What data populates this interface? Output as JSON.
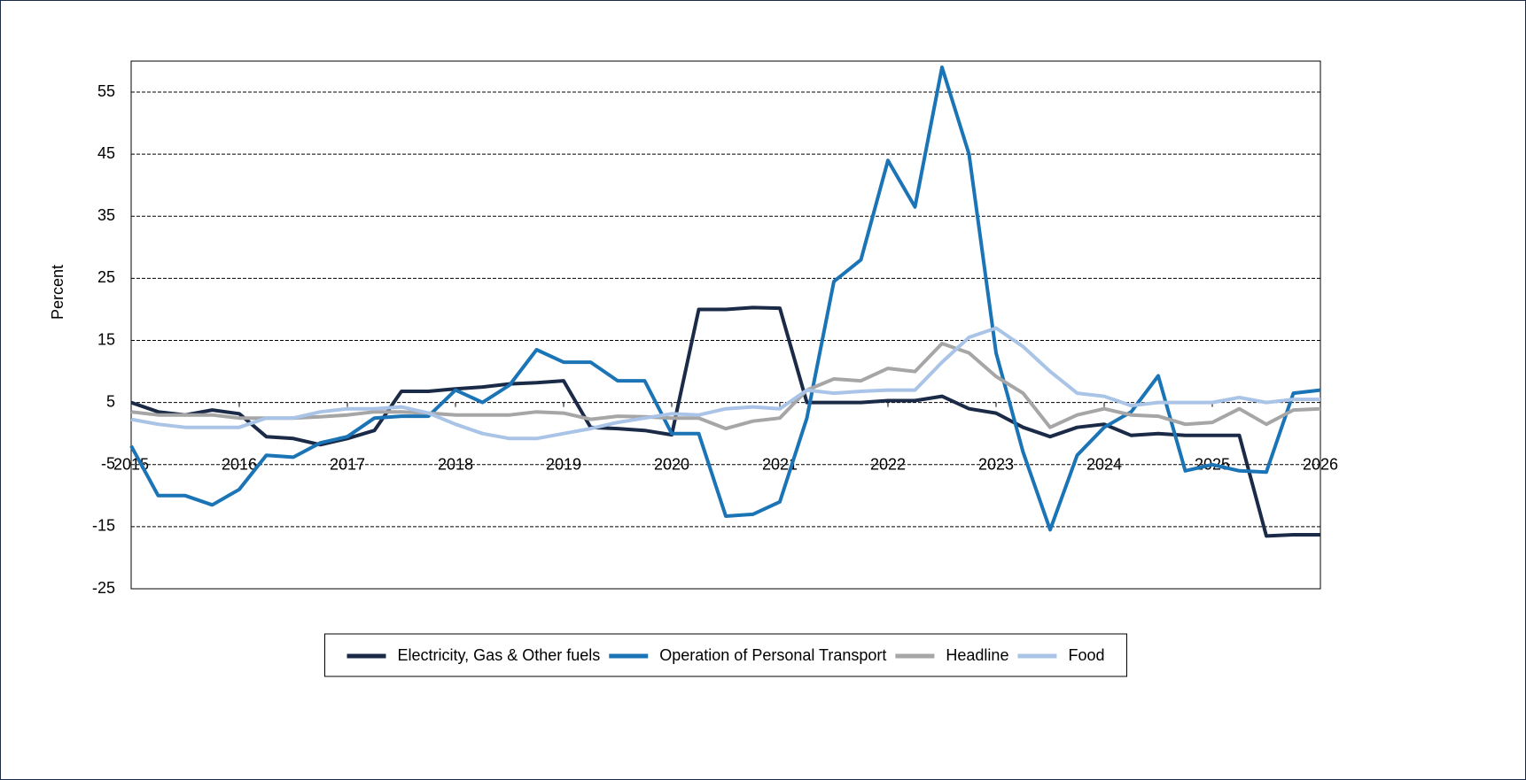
{
  "chart_data": {
    "type": "line",
    "y_label": "Percent",
    "x": [
      2015,
      2015.25,
      2015.5,
      2015.75,
      2016,
      2016.25,
      2016.5,
      2016.75,
      2017,
      2017.25,
      2017.5,
      2017.75,
      2018,
      2018.25,
      2018.5,
      2018.75,
      2019,
      2019.25,
      2019.5,
      2019.75,
      2020,
      2020.25,
      2020.5,
      2020.75,
      2021,
      2021.25,
      2021.5,
      2021.75,
      2022,
      2022.25,
      2022.5,
      2022.75,
      2023,
      2023.25,
      2023.5,
      2023.75,
      2024,
      2024.25,
      2024.5,
      2024.75,
      2025,
      2025.25,
      2025.5,
      2025.75,
      2026
    ],
    "series": [
      {
        "name": "Electricity, Gas & Other fuels",
        "color": "#1b2a47",
        "values": [
          5,
          3.5,
          3,
          3.8,
          3.2,
          -0.5,
          -0.8,
          -1.8,
          -0.8,
          0.5,
          6.8,
          6.8,
          7.2,
          7.5,
          8,
          8.2,
          8.5,
          1,
          0.8,
          0.5,
          -0.2,
          20,
          20,
          20.3,
          20.2,
          5,
          5,
          5,
          5.3,
          5.3,
          6,
          4,
          3.3,
          1,
          -0.5,
          1,
          1.5,
          -0.3,
          0,
          -0.3,
          -0.3,
          -0.3,
          -16.5,
          -16.3,
          -16.3
        ]
      },
      {
        "name": "Operation of Personal Transport",
        "color": "#1a74b5",
        "values": [
          -2,
          -10,
          -10,
          -11.5,
          -9,
          -3.5,
          -3.8,
          -1.5,
          -0.5,
          2.5,
          2.8,
          2.8,
          7,
          5,
          7.8,
          13.5,
          11.5,
          11.5,
          8.5,
          8.5,
          0,
          0,
          -13.3,
          -13,
          -11,
          2.5,
          24.5,
          28,
          44,
          36.5,
          59,
          45,
          13,
          -3,
          -15.5,
          -3.5,
          1,
          3.5,
          9.3,
          -6,
          -5,
          -6,
          -6.2,
          6.5,
          7
        ]
      },
      {
        "name": "Headline",
        "color": "#a6a6a6",
        "values": [
          3.5,
          3,
          3,
          3,
          2.5,
          2.5,
          2.5,
          2.7,
          3,
          3.5,
          3.5,
          3.3,
          3,
          3,
          3,
          3.5,
          3.3,
          2.3,
          2.8,
          2.7,
          2.5,
          2.5,
          0.8,
          2,
          2.5,
          7,
          8.8,
          8.5,
          10.5,
          10,
          14.5,
          13,
          9.2,
          6.5,
          1,
          3,
          4,
          3,
          2.8,
          1.5,
          1.8,
          4,
          1.5,
          3.8,
          4
        ]
      },
      {
        "name": "Food",
        "color": "#a9c4e6",
        "values": [
          2.3,
          1.5,
          1,
          1,
          1,
          2.5,
          2.5,
          3.5,
          4,
          4,
          4.3,
          3.3,
          1.5,
          0,
          -0.8,
          -0.8,
          0,
          0.8,
          1.8,
          2.5,
          3.2,
          3,
          4,
          4.3,
          4,
          7,
          6.5,
          6.8,
          7,
          7,
          11.5,
          15.5,
          17,
          14,
          10,
          6.5,
          6,
          4.5,
          5,
          5,
          5,
          5.8,
          5,
          5.5,
          5.5
        ]
      }
    ],
    "xlim": [
      2015,
      2026
    ],
    "xticks": [
      2015,
      2016,
      2017,
      2018,
      2019,
      2020,
      2021,
      2022,
      2023,
      2024,
      2025,
      2026
    ],
    "ylim": [
      -25,
      60
    ],
    "yticks": [
      -25,
      -15,
      -5,
      5,
      15,
      25,
      35,
      45,
      55
    ],
    "grid": true,
    "legend": "bottom"
  }
}
